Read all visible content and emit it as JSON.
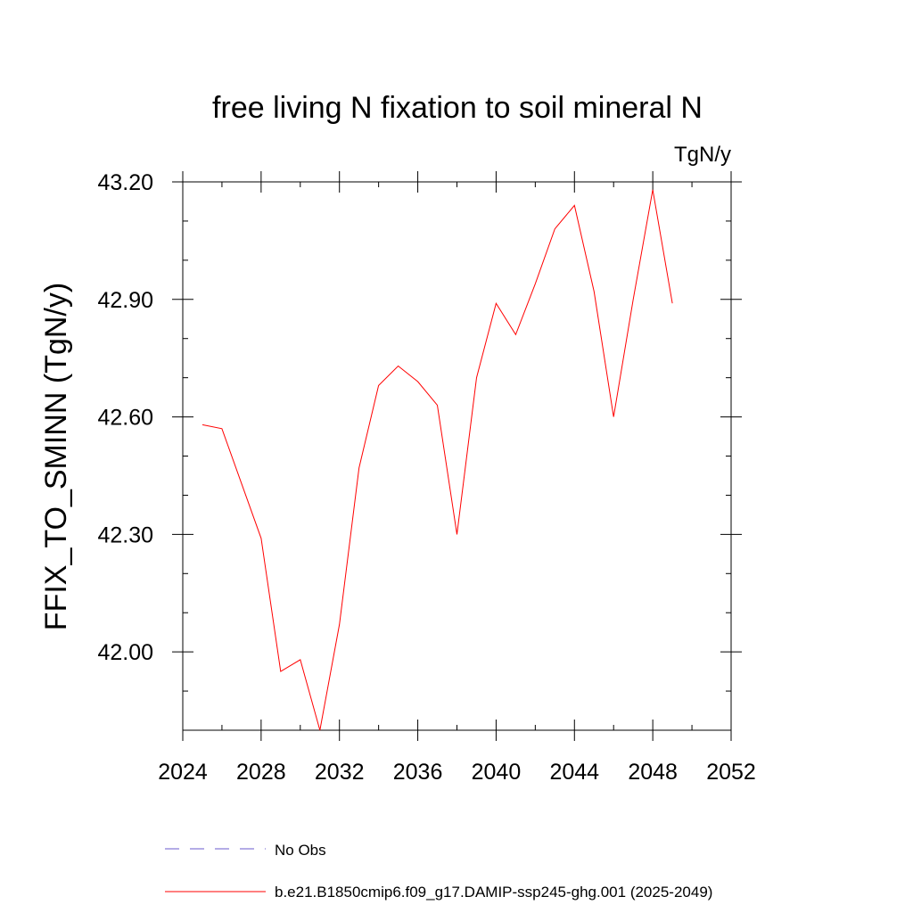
{
  "chart_data": {
    "type": "line",
    "title": "free living N fixation to soil mineral N",
    "units_label": "TgN/y",
    "xlabel": "",
    "ylabel": "FFIX_TO_SMINN  (TgN/y)",
    "xlim": [
      2024,
      2052
    ],
    "ylim": [
      41.8,
      43.2
    ],
    "x_ticks": [
      2024,
      2028,
      2032,
      2036,
      2040,
      2044,
      2048,
      2052
    ],
    "x_tick_labels": [
      "2024",
      "2028",
      "2032",
      "2036",
      "2040",
      "2044",
      "2048",
      "2052"
    ],
    "y_ticks": [
      42.0,
      42.3,
      42.6,
      42.9,
      43.2
    ],
    "y_tick_labels": [
      "42.00",
      "42.30",
      "42.60",
      "42.90",
      "43.20"
    ],
    "grid": false,
    "legend_position": "bottom-left",
    "series": [
      {
        "name": "No Obs",
        "color": "#6a5acd",
        "style": "dashed",
        "x": [],
        "values": []
      },
      {
        "name": "b.e21.B1850cmip6.f09_g17.DAMIP-ssp245-ghg.001 (2025-2049)",
        "color": "#ff0000",
        "style": "solid",
        "x": [
          2025,
          2026,
          2027,
          2028,
          2029,
          2030,
          2031,
          2032,
          2033,
          2034,
          2035,
          2036,
          2037,
          2038,
          2039,
          2040,
          2041,
          2042,
          2043,
          2044,
          2045,
          2046,
          2047,
          2048,
          2049
        ],
        "values": [
          42.58,
          42.57,
          42.43,
          42.29,
          41.95,
          41.98,
          41.8,
          42.07,
          42.47,
          42.68,
          42.73,
          42.69,
          42.63,
          42.3,
          42.7,
          42.89,
          42.81,
          42.94,
          43.08,
          43.14,
          42.92,
          42.6,
          42.9,
          43.18,
          42.89
        ]
      }
    ]
  }
}
